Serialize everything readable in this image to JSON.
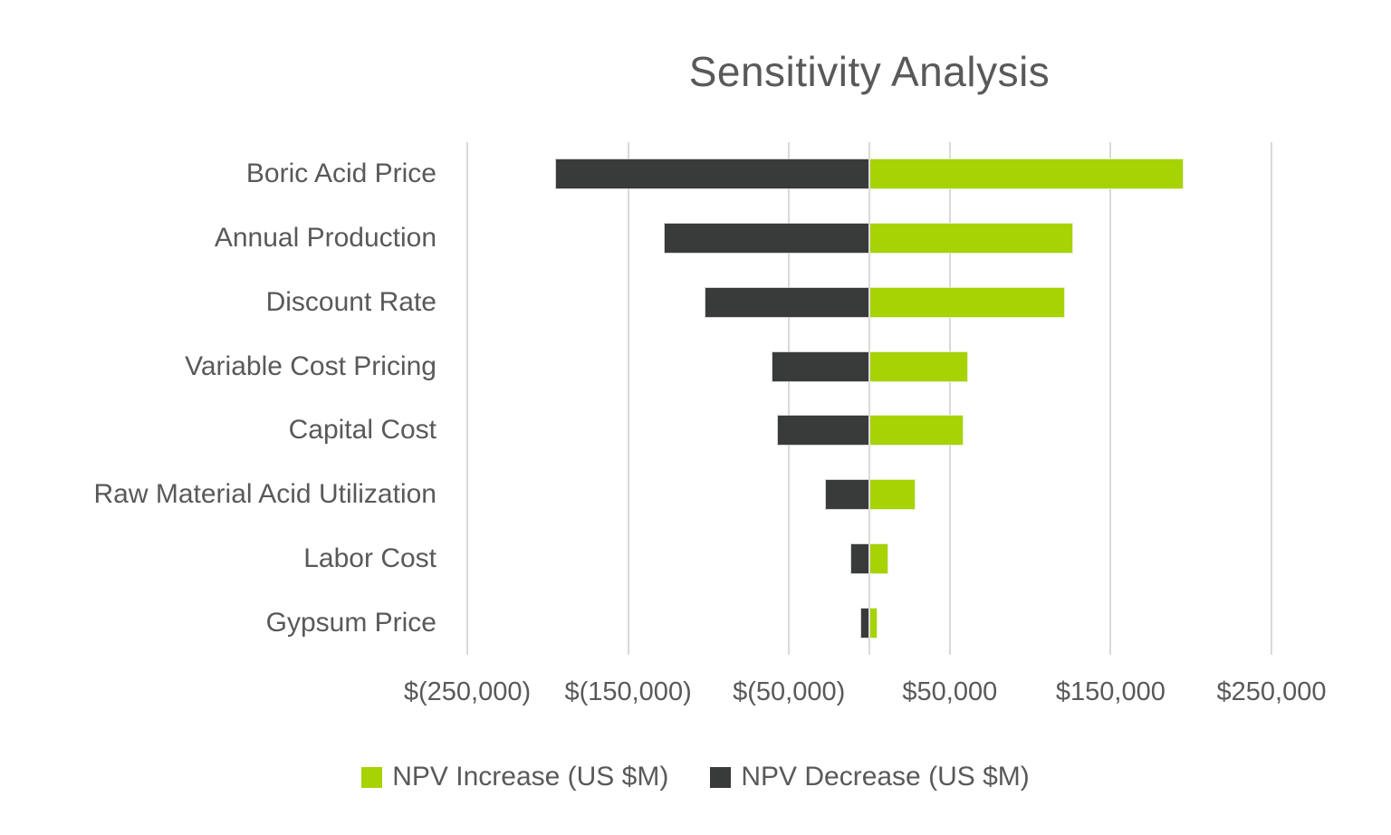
{
  "page": {
    "background": "#FFFFFF"
  },
  "chart_data": {
    "type": "bar",
    "orientation": "horizontal",
    "subtype": "tornado",
    "title": "Sensitivity Analysis",
    "categories": [
      "Boric Acid Price",
      "Annual Production",
      "Discount Rate",
      "Variable Cost Pricing",
      "Capital Cost",
      "Raw Material Acid Utilization",
      "Labor Cost",
      "Gypsum Price"
    ],
    "series": [
      {
        "name": "NPV Increase (US $M)",
        "color": "#A7D204",
        "values": [
          195000,
          126000,
          121000,
          61000,
          58000,
          28000,
          11500,
          4500
        ]
      },
      {
        "name": "NPV Decrease (US $M)",
        "color": "#393B3A",
        "values": [
          -195000,
          -127000,
          -102000,
          -60000,
          -57000,
          -27000,
          -11000,
          -5000
        ]
      }
    ],
    "xlim": [
      -250000,
      250000
    ],
    "x_ticks": [
      {
        "value": -250000,
        "label": "$(250,000)"
      },
      {
        "value": -150000,
        "label": "$(150,000)"
      },
      {
        "value": -50000,
        "label": "$(50,000)"
      },
      {
        "value": 50000,
        "label": "$50,000"
      },
      {
        "value": 150000,
        "label": "$150,000"
      },
      {
        "value": 250000,
        "label": "$250,000"
      }
    ],
    "grid": "vertical-major-gridlines-on",
    "legend_position": "bottom",
    "colors": {
      "gridline": "#D9D9D9",
      "text": "#595959",
      "background": "#FFFFFF"
    }
  }
}
